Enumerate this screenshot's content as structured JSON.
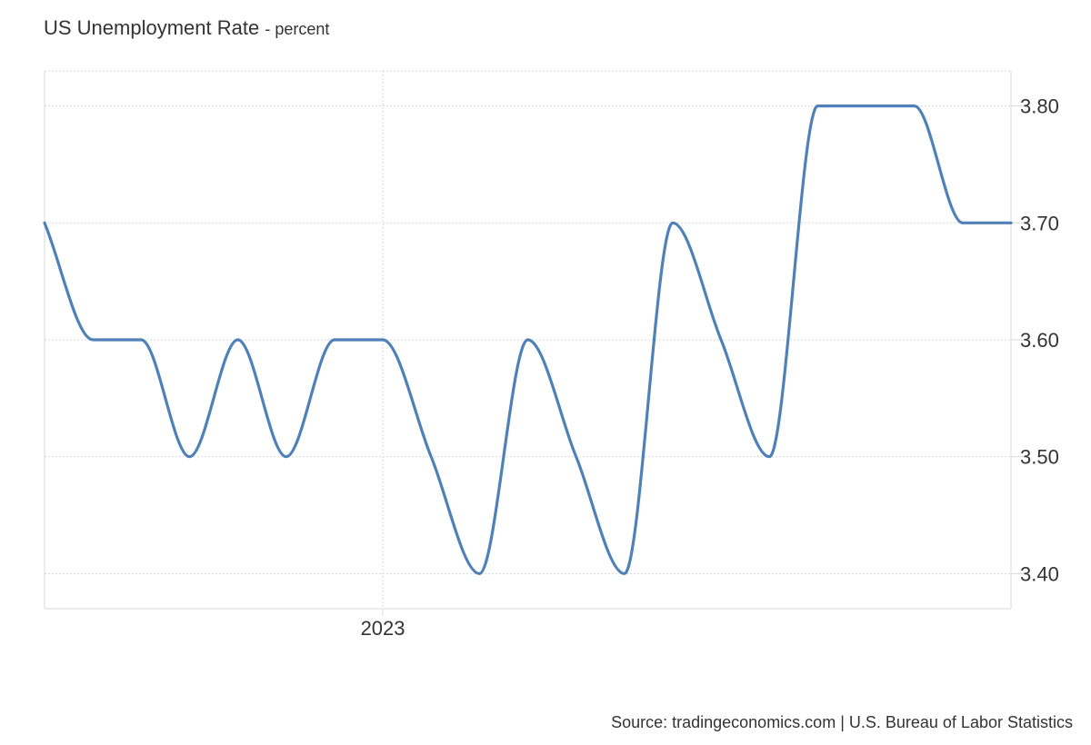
{
  "chart_data": {
    "type": "line",
    "title": "US Unemployment Rate",
    "subtitle": "- percent",
    "xlabel": "",
    "ylabel": "",
    "x": [
      "2022-06",
      "2022-07",
      "2022-08",
      "2022-09",
      "2022-10",
      "2022-11",
      "2022-12",
      "2023-01",
      "2023-02",
      "2023-03",
      "2023-04",
      "2023-05",
      "2023-06",
      "2023-07",
      "2023-08",
      "2023-09",
      "2023-10",
      "2023-11",
      "2023-12",
      "2024-01",
      "2024-02"
    ],
    "x_tick_labels": [
      {
        "x": "2023-01",
        "label": "2023"
      }
    ],
    "series": [
      {
        "values": [
          3.7,
          3.6,
          3.6,
          3.5,
          3.6,
          3.5,
          3.6,
          3.6,
          3.5,
          3.4,
          3.6,
          3.5,
          3.4,
          3.7,
          3.6,
          3.5,
          3.8,
          3.8,
          3.8,
          3.7,
          3.7
        ],
        "color": "#4f80b7"
      }
    ],
    "ylim": [
      3.37,
      3.83
    ],
    "y_ticks": [
      "3.40",
      "3.50",
      "3.60",
      "3.70",
      "3.80"
    ],
    "y_axis_side": "right",
    "grid": true
  },
  "source": "Source: tradingeconomics.com | U.S. Bureau of Labor Statistics"
}
